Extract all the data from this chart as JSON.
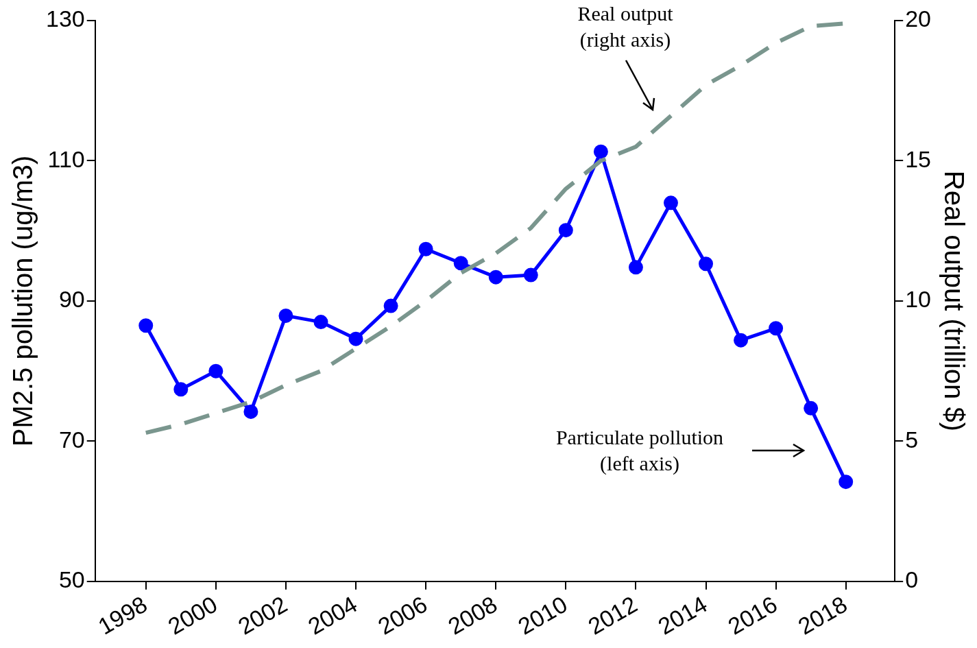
{
  "chart_data": {
    "type": "line",
    "ylabel": "PM2.5 pollution (ug/m3)",
    "y2label": "Real output (trillion $)",
    "x": [
      1998,
      1999,
      2000,
      2001,
      2002,
      2003,
      2004,
      2005,
      2006,
      2007,
      2008,
      2009,
      2010,
      2011,
      2012,
      2013,
      2014,
      2015,
      2016,
      2017,
      2018
    ],
    "series": [
      {
        "color": "#0000ff",
        "marker": "circle",
        "line_style": "solid",
        "values": [
          86.5,
          77.4,
          80.0,
          74.2,
          87.9,
          87.0,
          84.6,
          89.3,
          97.4,
          95.4,
          93.4,
          93.7,
          100.1,
          111.3,
          94.8,
          104.0,
          95.3,
          84.4,
          86.1,
          74.7,
          64.2
        ]
      },
      {
        "color": "#7a968e",
        "marker": "none",
        "line_style": "dashed",
        "axis": "y2",
        "values": [
          5.3,
          5.6,
          6.0,
          6.4,
          7.0,
          7.5,
          8.3,
          9.1,
          10.0,
          11.0,
          11.7,
          12.6,
          14.0,
          15.0,
          15.5,
          16.6,
          17.7,
          18.4,
          19.2,
          19.8,
          19.9
        ]
      }
    ],
    "xlim": [
      1996.55,
      2019.4
    ],
    "xticks": [
      1998,
      2000,
      2002,
      2004,
      2006,
      2008,
      2010,
      2012,
      2014,
      2016,
      2018
    ],
    "ylim": [
      50,
      130
    ],
    "yticks": [
      50,
      70,
      90,
      110,
      130
    ],
    "y2lim": [
      0,
      20
    ],
    "y2ticks": [
      0,
      5,
      10,
      15,
      20
    ],
    "grid": false,
    "legend": false,
    "annotations": [
      "Real output\n(right axis)",
      "Particulate pollution\n(left axis)"
    ]
  }
}
